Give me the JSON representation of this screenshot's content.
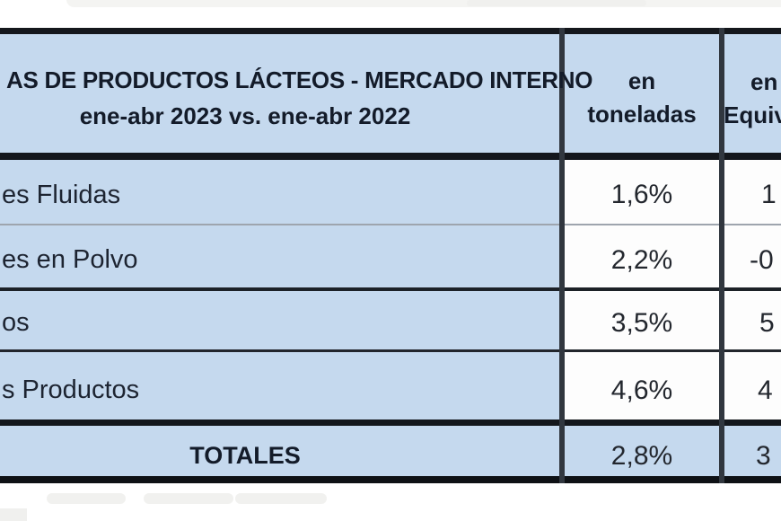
{
  "colors": {
    "header_blue": "#c5d9ee",
    "cell_white": "#fdfdfd",
    "border_black": "#14171c",
    "border_thin_gray": "#9ea5ae",
    "text_dark": "#1d2431"
  },
  "chart_data": {
    "type": "table",
    "title_line1": "AS DE PRODUCTOS LÁCTEOS - MERCADO INTERNO",
    "subtitle": "ene-abr 2023 vs. ene-abr 2022",
    "columns": [
      {
        "line1": "en",
        "line2": "toneladas"
      },
      {
        "line1": "en",
        "line2": "Equiv"
      }
    ],
    "rows": [
      {
        "label": "es Fluidas",
        "toneladas": "1,6%",
        "equiv_visible": "1"
      },
      {
        "label": "es en Polvo",
        "toneladas": "2,2%",
        "equiv_visible": "-0"
      },
      {
        "label": "os",
        "toneladas": "3,5%",
        "equiv_visible": "5"
      },
      {
        "label": "s Productos",
        "toneladas": "4,6%",
        "equiv_visible": "4"
      }
    ],
    "totals": {
      "label": "TOTALES",
      "toneladas": "2,8%",
      "equiv_visible": "3"
    },
    "layout": {
      "grid": "on",
      "note": "table clipped at left and right edges"
    }
  }
}
